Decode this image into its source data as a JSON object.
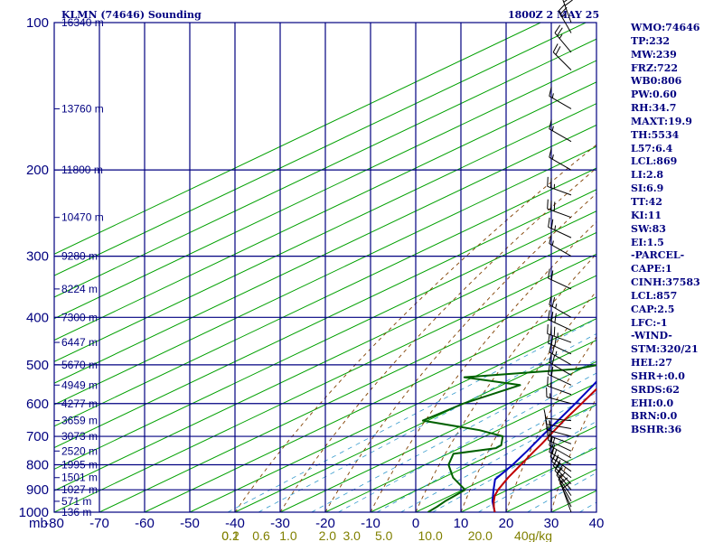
{
  "header": {
    "left": "KLMN (74646) Sounding",
    "right": "1800Z  2 MAY 25"
  },
  "indices": [
    "WMO:74646",
    "TP:232",
    "MW:239",
    "FRZ:722",
    "WB0:806",
    "PW:0.60",
    "RH:34.7",
    "MAXT:19.9",
    "TH:5534",
    "L57:6.4",
    "LCL:869",
    "LI:2.8",
    "SI:6.9",
    "TT:42",
    "KI:11",
    "SW:83",
    "EI:1.5",
    "-PARCEL-",
    "CAPE:1",
    "CINH:37583",
    "LCL:857",
    "CAP:2.5",
    "LFC:-1",
    "-WIND-",
    "STM:320/21",
    "HEL:27",
    "SHR+:0.0",
    "SRDS:62",
    "EHI:0.0",
    "BRN:0.0",
    "BSHR:36"
  ],
  "colors": {
    "axis": "#000080",
    "temperature": "#c00000",
    "dewpoint": "#006000",
    "parcel": "#0000c0",
    "isotherm": "#00a000",
    "dry_adiabat": "#804000",
    "mixing_ratio": "#3399cc",
    "mixing_label": "#808000",
    "wind": "#000000"
  },
  "chart_data": {
    "type": "skew-t",
    "title": "KLMN (74646) Sounding",
    "subtitle": "1800Z  2 MAY 25",
    "xlabel": "",
    "ylabel": "mb",
    "pressure_axis_label": "mb",
    "log_pressure_axis": true,
    "pressure_range": [
      1000,
      100
    ],
    "temperature_range": [
      -80,
      40
    ],
    "temperature_ticks": [
      -80,
      -70,
      -60,
      -50,
      -40,
      -30,
      -20,
      -10,
      0,
      10,
      20,
      30,
      40
    ],
    "temperature_tick_labels": [
      "-80",
      "-70",
      "-60",
      "-50",
      "-40",
      "-30",
      "-20",
      "-10",
      "0",
      "10",
      "20",
      "30",
      "40"
    ],
    "pressure_levels": [
      100,
      200,
      300,
      400,
      500,
      600,
      700,
      800,
      900,
      1000
    ],
    "height_labels": [
      {
        "p": 100,
        "h": "16340 m"
      },
      {
        "p": 150,
        "h": "13760 m"
      },
      {
        "p": 200,
        "h": "11800 m"
      },
      {
        "p": 250,
        "h": "10470 m"
      },
      {
        "p": 300,
        "h": "9280 m"
      },
      {
        "p": 350,
        "h": "8224 m"
      },
      {
        "p": 400,
        "h": "7300 m"
      },
      {
        "p": 450,
        "h": "6447 m"
      },
      {
        "p": 500,
        "h": "5670 m"
      },
      {
        "p": 550,
        "h": "4949 m"
      },
      {
        "p": 600,
        "h": "4277 m"
      },
      {
        "p": 650,
        "h": "3659 m"
      },
      {
        "p": 700,
        "h": "3073 m"
      },
      {
        "p": 750,
        "h": "2520 m"
      },
      {
        "p": 800,
        "h": "1995 m"
      },
      {
        "p": 850,
        "h": "1501 m"
      },
      {
        "p": 900,
        "h": "1027 m"
      },
      {
        "p": 950,
        "h": "571 m"
      },
      {
        "p": 1000,
        "h": "136 m"
      }
    ],
    "mixing_ratio_labels": [
      "0.1",
      "0.2",
      "0.6",
      "1.0",
      "2.0",
      "3.0",
      "5.0",
      "10.0",
      "20.0",
      "40g/kg"
    ],
    "series": [
      {
        "name": "temperature",
        "points": [
          [
            1000,
            17.5
          ],
          [
            975,
            14.8
          ],
          [
            950,
            12.2
          ],
          [
            925,
            9.8
          ],
          [
            900,
            7.8
          ],
          [
            850,
            4.4
          ],
          [
            800,
            1.2
          ],
          [
            750,
            -2.2
          ],
          [
            725,
            -3.9
          ],
          [
            700,
            -5.8
          ],
          [
            650,
            -9.8
          ],
          [
            600,
            -13.8
          ],
          [
            550,
            -18.2
          ],
          [
            520,
            -21.6
          ],
          [
            500,
            -23.2
          ],
          [
            475,
            -26.6
          ],
          [
            450,
            -29.7
          ],
          [
            400,
            -36.8
          ],
          [
            350,
            -44.2
          ],
          [
            300,
            -52.8
          ],
          [
            275,
            -57.1
          ],
          [
            250,
            -60.5
          ],
          [
            200,
            -56.0
          ],
          [
            150,
            -47.6
          ],
          [
            100,
            -46.6
          ]
        ]
      },
      {
        "name": "dewpoint",
        "points": [
          [
            1000,
            2.7
          ],
          [
            975,
            2.2
          ],
          [
            950,
            1.4
          ],
          [
            925,
            1.0
          ],
          [
            900,
            0.5
          ],
          [
            850,
            -7.8
          ],
          [
            800,
            -14.8
          ],
          [
            760,
            -18.8
          ],
          [
            740,
            -12.0
          ],
          [
            730,
            -12.2
          ],
          [
            700,
            -16.0
          ],
          [
            680,
            -24.0
          ],
          [
            650,
            -41.0
          ],
          [
            600,
            -40.0
          ],
          [
            550,
            -36.0
          ],
          [
            530,
            -52.0
          ],
          [
            510,
            -31.0
          ],
          [
            500,
            -28.0
          ],
          [
            475,
            -32.6
          ],
          [
            455,
            -34.5
          ],
          [
            420,
            -37.2
          ],
          [
            400,
            -39.3
          ],
          [
            350,
            -44.5
          ],
          [
            300,
            -51.5
          ],
          [
            290,
            -49.0
          ],
          [
            280,
            -54.0
          ],
          [
            250,
            -60.0
          ],
          [
            200,
            -69.0
          ],
          [
            185,
            -73.0
          ]
        ]
      },
      {
        "name": "parcel",
        "points": [
          [
            1000,
            17.5
          ],
          [
            950,
            11.9
          ],
          [
            900,
            6.8
          ],
          [
            857,
            2.3
          ],
          [
            800,
            -0.6
          ],
          [
            750,
            -3.8
          ],
          [
            700,
            -7.4
          ],
          [
            650,
            -11.1
          ],
          [
            600,
            -15.2
          ],
          [
            550,
            -19.8
          ],
          [
            500,
            -25.1
          ],
          [
            450,
            -31.2
          ],
          [
            400,
            -38.5
          ],
          [
            350,
            -46.5
          ],
          [
            300,
            -56.0
          ],
          [
            250,
            -67.0
          ],
          [
            200,
            -80.0
          ],
          [
            190,
            -83.0
          ]
        ]
      }
    ],
    "winds": [
      {
        "p": 1000,
        "dir": 340,
        "kt": 10
      },
      {
        "p": 975,
        "dir": 335,
        "kt": 10
      },
      {
        "p": 950,
        "dir": 330,
        "kt": 15
      },
      {
        "p": 925,
        "dir": 325,
        "kt": 15
      },
      {
        "p": 900,
        "dir": 320,
        "kt": 20
      },
      {
        "p": 875,
        "dir": 315,
        "kt": 20
      },
      {
        "p": 850,
        "dir": 310,
        "kt": 25
      },
      {
        "p": 825,
        "dir": 305,
        "kt": 25
      },
      {
        "p": 800,
        "dir": 300,
        "kt": 20
      },
      {
        "p": 775,
        "dir": 300,
        "kt": 20
      },
      {
        "p": 750,
        "dir": 295,
        "kt": 15
      },
      {
        "p": 725,
        "dir": 290,
        "kt": 15
      },
      {
        "p": 700,
        "dir": 285,
        "kt": 20
      },
      {
        "p": 675,
        "dir": 280,
        "kt": 15
      },
      {
        "p": 650,
        "dir": 275,
        "kt": 10
      },
      {
        "p": 600,
        "dir": 285,
        "kt": 15
      },
      {
        "p": 575,
        "dir": 290,
        "kt": 15
      },
      {
        "p": 550,
        "dir": 295,
        "kt": 20
      },
      {
        "p": 525,
        "dir": 300,
        "kt": 20
      },
      {
        "p": 500,
        "dir": 300,
        "kt": 25
      },
      {
        "p": 475,
        "dir": 295,
        "kt": 30
      },
      {
        "p": 450,
        "dir": 290,
        "kt": 35
      },
      {
        "p": 425,
        "dir": 295,
        "kt": 30
      },
      {
        "p": 400,
        "dir": 300,
        "kt": 25
      },
      {
        "p": 350,
        "dir": 295,
        "kt": 20
      },
      {
        "p": 300,
        "dir": 300,
        "kt": 15
      },
      {
        "p": 275,
        "dir": 295,
        "kt": 25
      },
      {
        "p": 250,
        "dir": 290,
        "kt": 30
      },
      {
        "p": 225,
        "dir": 290,
        "kt": 25
      },
      {
        "p": 200,
        "dir": 300,
        "kt": 15
      },
      {
        "p": 175,
        "dir": 300,
        "kt": 15
      },
      {
        "p": 150,
        "dir": 300,
        "kt": 15
      },
      {
        "p": 125,
        "dir": 315,
        "kt": 20
      },
      {
        "p": 115,
        "dir": 320,
        "kt": 25
      },
      {
        "p": 105,
        "dir": 330,
        "kt": 25
      },
      {
        "p": 100,
        "dir": 340,
        "kt": 30
      }
    ]
  }
}
